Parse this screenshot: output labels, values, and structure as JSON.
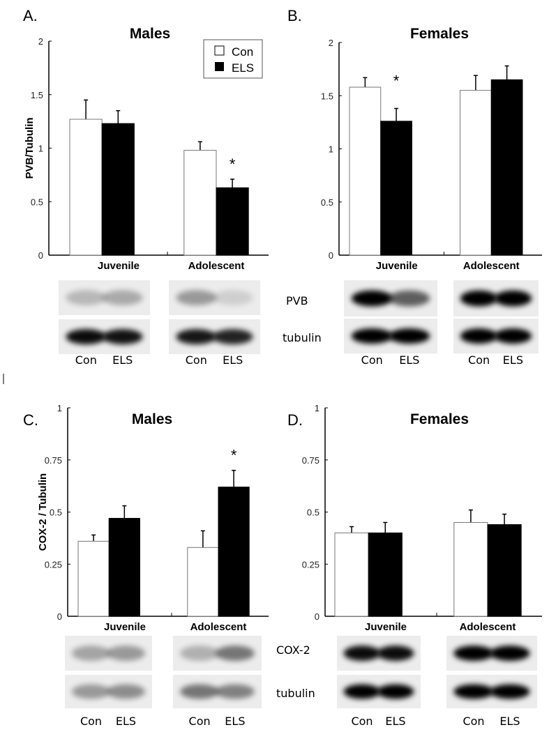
{
  "legend": {
    "con": "Con",
    "els": "ELS"
  },
  "colors": {
    "con": "#ffffff",
    "els": "#000000"
  },
  "blot_labels": {
    "pvb": "PVB",
    "cox2": "COX-2",
    "tubulin": "tubulin"
  },
  "lane_labels": [
    "Con",
    "ELS"
  ],
  "chart_data": [
    {
      "panel": "A.",
      "type": "bar",
      "title": "Males",
      "ylabel": "PVB/Tubulin",
      "ylim": [
        0,
        2
      ],
      "yticks": [
        "0",
        "0.5",
        "1",
        "1.5",
        "2"
      ],
      "categories": [
        "Juvenile",
        "Adolescent"
      ],
      "series": [
        {
          "name": "Con",
          "values": [
            1.27,
            0.98
          ],
          "errors": [
            0.18,
            0.08
          ]
        },
        {
          "name": "ELS",
          "values": [
            1.23,
            0.63
          ],
          "errors": [
            0.12,
            0.08
          ]
        }
      ],
      "significance": [
        null,
        "*"
      ],
      "legend": "top-right"
    },
    {
      "panel": "B.",
      "type": "bar",
      "title": "Females",
      "ylabel": "",
      "ylim": [
        0,
        2
      ],
      "yticks": [
        "0",
        "0.5",
        "1",
        "1.5",
        "2"
      ],
      "categories": [
        "Juvenile",
        "Adolescent"
      ],
      "series": [
        {
          "name": "Con",
          "values": [
            1.58,
            1.55
          ],
          "errors": [
            0.09,
            0.14
          ]
        },
        {
          "name": "ELS",
          "values": [
            1.26,
            1.65
          ],
          "errors": [
            0.12,
            0.13
          ]
        }
      ],
      "significance": [
        "*",
        null
      ]
    },
    {
      "panel": "C.",
      "type": "bar",
      "title": "Males",
      "ylabel": "COX-2 / Tubulin",
      "ylim": [
        0,
        1
      ],
      "yticks": [
        "0",
        "0.25",
        "0.5",
        "0.75",
        "1"
      ],
      "categories": [
        "Juvenile",
        "Adolescent"
      ],
      "series": [
        {
          "name": "Con",
          "values": [
            0.36,
            0.33
          ],
          "errors": [
            0.03,
            0.08
          ]
        },
        {
          "name": "ELS",
          "values": [
            0.47,
            0.62
          ],
          "errors": [
            0.06,
            0.08
          ]
        }
      ],
      "significance": [
        null,
        "*"
      ]
    },
    {
      "panel": "D.",
      "type": "bar",
      "title": "Females",
      "ylabel": "",
      "ylim": [
        0,
        1
      ],
      "yticks": [
        "0",
        "0.25",
        "0.5",
        "0.75",
        "1"
      ],
      "categories": [
        "Juvenile",
        "Adolescent"
      ],
      "series": [
        {
          "name": "Con",
          "values": [
            0.4,
            0.45
          ],
          "errors": [
            0.03,
            0.06
          ]
        },
        {
          "name": "ELS",
          "values": [
            0.4,
            0.44
          ],
          "errors": [
            0.05,
            0.05
          ]
        }
      ],
      "significance": [
        null,
        null
      ]
    }
  ]
}
